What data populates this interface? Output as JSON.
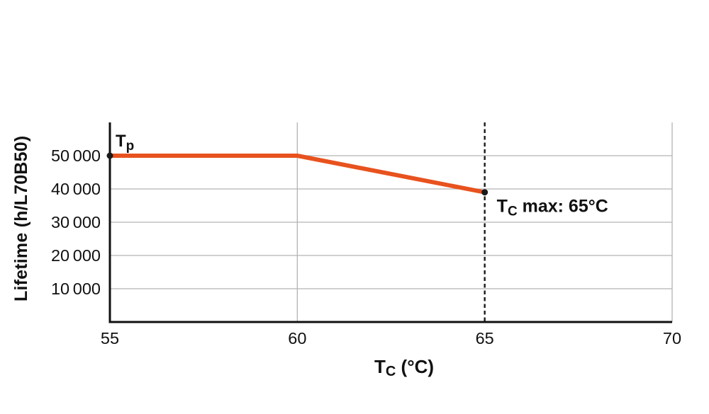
{
  "figure": {
    "background": "#ffffff",
    "text_color": "#111111"
  },
  "chart_data": {
    "type": "line",
    "title": "",
    "xlabel_parts": {
      "main": "T",
      "sub": "C",
      "rest": " (°C)"
    },
    "ylabel": "Lifetime (h/L70B50)",
    "xlim": [
      55,
      70
    ],
    "ylim": [
      0,
      60000
    ],
    "xticks": {
      "values": [
        55,
        60,
        65,
        70
      ],
      "labels": [
        "55",
        "60",
        "65",
        "70"
      ]
    },
    "yticks": {
      "values": [
        10000,
        20000,
        30000,
        40000,
        50000
      ],
      "labels": [
        "10 000",
        "20 000",
        "30 000",
        "40 000",
        "50 000"
      ]
    },
    "grid": {
      "horizontal_at": [
        10000,
        20000,
        30000,
        40000,
        50000
      ],
      "vertical_at": [
        60,
        70
      ],
      "color": "#b4b4b4"
    },
    "axis_color": "#111111",
    "reference_line": {
      "x": 65,
      "style": "dashed",
      "color": "#1a1a1a"
    },
    "series": [
      {
        "name": "lifetime-curve",
        "color": "#e8521e",
        "x": [
          55,
          60,
          65
        ],
        "y": [
          50000,
          50000,
          39000
        ],
        "marker_points": [
          [
            55,
            50000
          ],
          [
            65,
            39000
          ]
        ],
        "marker_color": "#1a1a1a"
      }
    ],
    "annotations": [
      {
        "name": "tp-label",
        "main": "T",
        "sub": "p",
        "rest": "",
        "x": 55,
        "y": 50000
      },
      {
        "name": "tc-max-label",
        "main": "T",
        "sub": "C",
        "rest": " max: 65°C",
        "x": 65,
        "y": 39000
      }
    ],
    "legend": null,
    "grid_on": true
  }
}
